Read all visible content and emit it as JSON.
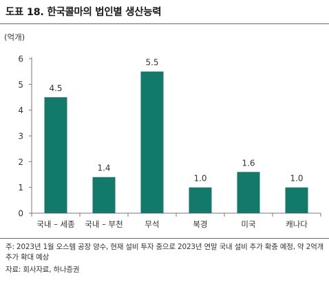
{
  "title": "도표 18. 한국콜마의 법인별 생산능력",
  "footnote": {
    "note": "주: 2023년 1월 오스템 공장 양수, 현재 설비 투자 중으로 2023년 연말 국내 설비 추가 확충 예정, 약 2억개 추가 확대 예상",
    "source": "자료: 회사자료, 하나증권"
  },
  "chart_data": {
    "type": "bar",
    "unit_label": "(억개)",
    "categories": [
      "국내 – 세종",
      "국내 – 부천",
      "무석",
      "북경",
      "미국",
      "캐나다"
    ],
    "values": [
      4.5,
      1.4,
      5.5,
      1.0,
      1.6,
      1.0
    ],
    "value_labels": [
      "4.5",
      "1.4",
      "5.5",
      "1.0",
      "1.6",
      "1.0"
    ],
    "y_ticks": [
      "0",
      "1",
      "2",
      "3",
      "4",
      "5",
      "6"
    ],
    "ylim": [
      0,
      6
    ],
    "grid": false,
    "bar_color": "#12796b"
  }
}
